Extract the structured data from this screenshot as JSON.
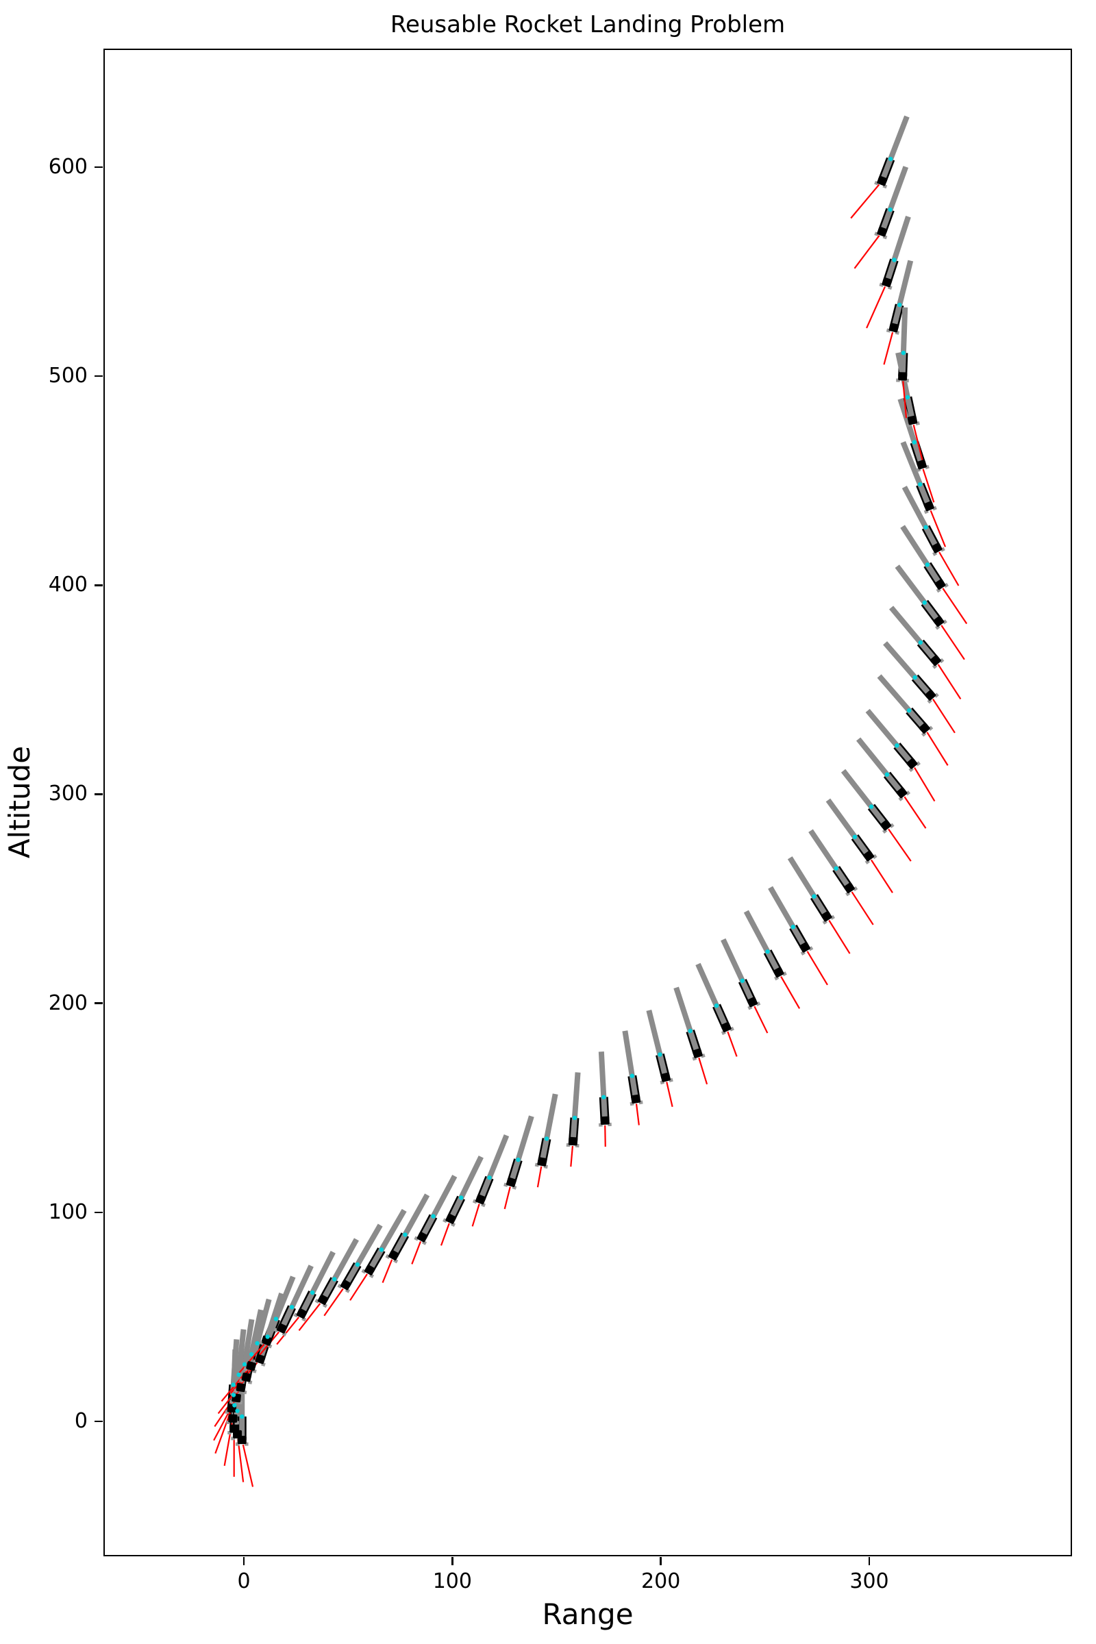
{
  "title": "Reusable Rocket Landing Problem",
  "chart_data": {
    "type": "scatter",
    "title": "Reusable Rocket Landing Problem",
    "xlabel": "Range",
    "ylabel": "Altitude",
    "xlim": [
      -66.7,
      396.6
    ],
    "ylim": [
      -63.9,
      656.0
    ],
    "x_ticks": [
      0,
      100,
      200,
      300
    ],
    "y_ticks": [
      0,
      100,
      200,
      300,
      400,
      500,
      600
    ],
    "grid": false,
    "legend": "none",
    "description": "Trajectory of a reusable rocket descending from upper right (range 306, altitude 593) along a curved path to a vertical touchdown at the origin. Each pose shows the rocket body (gray upper stage over black lower segment with a black engine base and small gray landing feet), a cyan joint marker, and a red thrust vector from the base.",
    "colors": {
      "body_gray": "#8b8b8b",
      "body_lower_black": "#000000",
      "thrust_red": "#ff0000",
      "joint_cyan": "#00d2dc",
      "feet_gray": "#9a9a9a",
      "axis_black": "#000000"
    },
    "body_length_units": 33,
    "body_black_fraction": 0.34,
    "rocket_columns": [
      "range",
      "altitude",
      "body_tilt_deg_from_vertical",
      "thrust_angle_deg_from_down",
      "thrust_length_units"
    ],
    "rockets": [
      [
        306.2,
        593.4,
        21,
        -40,
        23.3
      ],
      [
        306.2,
        569.1,
        20,
        -37,
        22.0
      ],
      [
        308.5,
        544.9,
        18,
        -24,
        24.0
      ],
      [
        311.8,
        523.2,
        14,
        -15,
        18.3
      ],
      [
        316.0,
        499.9,
        2,
        5,
        20.0
      ],
      [
        320.7,
        478.9,
        -12,
        14,
        19.7
      ],
      [
        325.1,
        457.7,
        -18,
        18,
        19.0
      ],
      [
        328.6,
        437.8,
        -22,
        22,
        21.0
      ],
      [
        332.4,
        417.8,
        -28,
        30,
        20.8
      ],
      [
        334.0,
        400.4,
        -33,
        34,
        22.7
      ],
      [
        333.3,
        382.7,
        -37,
        34,
        22.0
      ],
      [
        331.8,
        364.0,
        -40,
        33,
        22.0
      ],
      [
        329.3,
        347.4,
        -41,
        33,
        21.5
      ],
      [
        326.5,
        331.6,
        -41,
        32,
        21.0
      ],
      [
        320.5,
        314.7,
        -40,
        31,
        21.0
      ],
      [
        315.6,
        300.7,
        -39,
        34,
        20.5
      ],
      [
        307.9,
        285.2,
        -38,
        35,
        21.0
      ],
      [
        299.7,
        270.5,
        -36,
        33,
        21.0
      ],
      [
        290.4,
        255.2,
        -34,
        33,
        21.0
      ],
      [
        279.5,
        241.6,
        -32,
        32,
        21.0
      ],
      [
        269.1,
        226.8,
        -30,
        31,
        21.0
      ],
      [
        256.5,
        214.8,
        -28,
        30,
        20.0
      ],
      [
        243.9,
        200.6,
        -25,
        26,
        16.5
      ],
      [
        231.3,
        188.6,
        -24,
        20,
        15.0
      ],
      [
        217.6,
        176.1,
        -18,
        17,
        15.5
      ],
      [
        202.3,
        164.6,
        -14,
        13,
        14.5
      ],
      [
        188.0,
        154.2,
        -9,
        7,
        12.6
      ],
      [
        173.2,
        143.9,
        -3,
        1,
        12.5
      ],
      [
        157.9,
        134.0,
        4,
        -5,
        12.2
      ],
      [
        143.1,
        124.2,
        11,
        -10,
        12.4
      ],
      [
        128.3,
        114.4,
        17,
        -14,
        13.2
      ],
      [
        113.6,
        106.2,
        22,
        -17,
        13.5
      ],
      [
        99.3,
        96.9,
        26,
        -20,
        13.6
      ],
      [
        85.6,
        88.2,
        28,
        -21,
        13.9
      ],
      [
        71.9,
        79.5,
        29,
        -22,
        14.2
      ],
      [
        60.4,
        72.4,
        30,
        -33,
        17.3
      ],
      [
        48.9,
        65.3,
        30,
        -35,
        18.0
      ],
      [
        38.0,
        58.2,
        29,
        -38,
        18.7
      ],
      [
        27.8,
        51.6,
        27,
        -39,
        19.0
      ],
      [
        18.3,
        44.5,
        25,
        -40,
        20.0
      ],
      [
        11.2,
        38.6,
        22,
        -41,
        21.0
      ],
      [
        7.9,
        29.8,
        18,
        -41,
        21.5
      ],
      [
        3.5,
        26.5,
        15,
        -40,
        22.0
      ],
      [
        1.3,
        21.1,
        12,
        -38,
        22.0
      ],
      [
        -1.4,
        16.2,
        9,
        -34,
        22.5
      ],
      [
        -3.6,
        11.2,
        6,
        -28,
        23.0
      ],
      [
        -5.8,
        6.3,
        4,
        -20,
        23.0
      ],
      [
        -5.3,
        1.4,
        2,
        -10,
        23.0
      ],
      [
        -4.7,
        -3.5,
        1,
        0,
        23.0
      ],
      [
        -3.1,
        -6.2,
        0,
        7,
        23.0
      ],
      [
        -0.9,
        -8.9,
        0,
        13,
        23.0
      ]
    ]
  }
}
